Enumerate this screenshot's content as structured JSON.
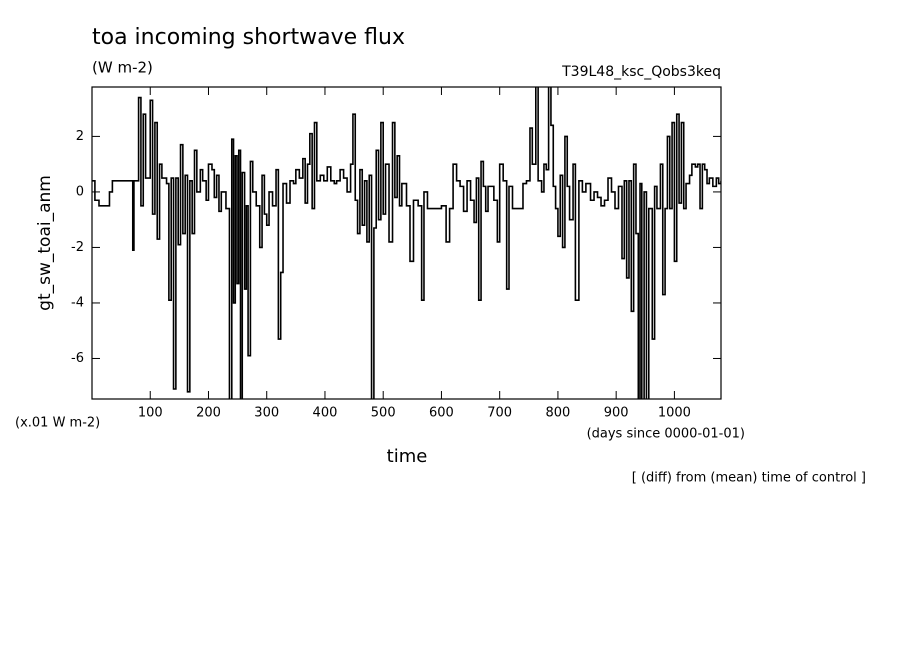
{
  "chart_data": {
    "type": "line",
    "title": "toa incoming shortwave flux",
    "subtitle": "(W m-2)",
    "run_label": "T39L48_ksc_Qobs3keq",
    "ylabel": "gt_sw_toai_anm",
    "yunit_note": "(x.01 W m-2)",
    "xlabel": "time",
    "xunit_note": "(days since 0000-01-01)",
    "footnote": "[ (diff) from (mean) time of control ]",
    "drawstyle": "steps-post",
    "color": "#000000",
    "xlim": [
      0,
      1080
    ],
    "ylim": [
      -7.46,
      3.78
    ],
    "xticks": [
      100,
      200,
      300,
      400,
      500,
      600,
      700,
      800,
      900,
      1000
    ],
    "yticks": [
      -6,
      -4,
      -2,
      0,
      2
    ],
    "x": [
      0,
      5,
      12,
      30,
      35,
      70,
      72,
      80,
      84,
      88,
      92,
      100,
      104,
      108,
      112,
      116,
      120,
      128,
      132,
      136,
      140,
      144,
      148,
      152,
      156,
      160,
      164,
      168,
      172,
      176,
      180,
      186,
      190,
      196,
      200,
      206,
      210,
      214,
      218,
      222,
      230,
      236,
      240,
      243,
      246,
      249,
      252,
      255,
      258,
      262,
      265,
      268,
      272,
      276,
      282,
      288,
      292,
      296,
      300,
      304,
      310,
      316,
      320,
      324,
      328,
      334,
      340,
      346,
      350,
      356,
      362,
      366,
      370,
      374,
      378,
      382,
      386,
      392,
      398,
      404,
      410,
      416,
      420,
      426,
      432,
      438,
      444,
      448,
      452,
      456,
      460,
      464,
      468,
      472,
      476,
      480,
      484,
      488,
      492,
      496,
      500,
      504,
      510,
      516,
      520,
      524,
      528,
      532,
      540,
      546,
      552,
      560,
      566,
      570,
      576,
      584,
      590,
      600,
      608,
      614,
      620,
      626,
      632,
      638,
      644,
      650,
      656,
      660,
      664,
      668,
      672,
      676,
      680,
      690,
      696,
      700,
      706,
      712,
      716,
      722,
      730,
      740,
      746,
      752,
      756,
      762,
      766,
      772,
      776,
      780,
      784,
      788,
      792,
      796,
      800,
      804,
      808,
      812,
      816,
      820,
      826,
      830,
      836,
      842,
      848,
      856,
      862,
      868,
      874,
      880,
      886,
      892,
      898,
      904,
      910,
      914,
      918,
      922,
      926,
      930,
      934,
      938,
      941,
      944,
      948,
      952,
      956,
      962,
      966,
      970,
      976,
      980,
      984,
      988,
      992,
      996,
      1000,
      1004,
      1008,
      1012,
      1016,
      1020,
      1026,
      1030,
      1036,
      1040,
      1044,
      1048,
      1052,
      1056,
      1060,
      1066,
      1072,
      1076,
      1080
    ],
    "values": [
      0.4,
      -0.3,
      -0.5,
      0.0,
      0.4,
      -2.1,
      0.4,
      3.4,
      -0.5,
      2.8,
      0.5,
      3.3,
      -0.8,
      2.5,
      -1.7,
      1.0,
      0.5,
      0.3,
      -3.9,
      0.5,
      -7.1,
      0.5,
      -1.9,
      1.7,
      -1.5,
      0.6,
      -7.2,
      0.4,
      -1.5,
      1.5,
      0.0,
      0.8,
      0.4,
      -0.3,
      1.0,
      0.8,
      -0.2,
      0.6,
      -0.7,
      0.0,
      -0.6,
      -7.5,
      1.9,
      -4.0,
      1.3,
      -3.3,
      1.5,
      -7.5,
      0.7,
      -3.5,
      -0.5,
      -5.9,
      1.1,
      0.0,
      -0.5,
      -2.0,
      0.6,
      -0.8,
      -1.2,
      0.0,
      -0.5,
      0.8,
      -5.3,
      -2.9,
      0.3,
      -0.4,
      0.4,
      0.3,
      0.8,
      0.5,
      1.2,
      -0.4,
      1.0,
      2.1,
      -0.6,
      2.5,
      0.4,
      0.6,
      0.4,
      0.9,
      0.4,
      0.3,
      0.4,
      0.8,
      0.5,
      0.0,
      1.0,
      2.8,
      -0.3,
      -1.5,
      0.8,
      -1.2,
      0.4,
      -1.8,
      0.6,
      -7.5,
      -1.3,
      1.5,
      -1.0,
      2.5,
      -0.8,
      1.0,
      -1.8,
      2.5,
      -0.2,
      1.3,
      -0.5,
      0.3,
      -0.5,
      -2.5,
      -0.3,
      -0.5,
      -3.9,
      0.0,
      -0.6,
      -0.6,
      -0.6,
      -0.5,
      -1.8,
      -0.6,
      1.0,
      0.4,
      0.2,
      -0.7,
      0.4,
      -0.3,
      -1.1,
      0.5,
      -3.9,
      1.1,
      0.2,
      -0.7,
      0.2,
      -0.3,
      -1.8,
      1.0,
      0.4,
      -3.5,
      0.2,
      -0.6,
      -0.6,
      0.3,
      0.4,
      2.3,
      1.0,
      3.8,
      0.4,
      0.0,
      1.0,
      0.8,
      3.8,
      2.4,
      0.2,
      -0.6,
      -1.6,
      0.6,
      -2.0,
      2.0,
      0.2,
      -1.0,
      1.0,
      -3.9,
      0.4,
      0.0,
      0.3,
      -0.3,
      0.0,
      -0.2,
      -0.5,
      -0.3,
      0.5,
      0.0,
      -0.6,
      0.2,
      -2.4,
      0.4,
      -3.1,
      0.4,
      -4.3,
      1.0,
      -1.5,
      -7.5,
      0.3,
      -7.5,
      0.0,
      -7.5,
      -0.6,
      -5.3,
      0.2,
      -0.6,
      1.0,
      -3.7,
      -0.6,
      2.0,
      -0.6,
      2.5,
      -2.5,
      2.8,
      -0.4,
      2.5,
      -0.6,
      0.3,
      0.6,
      1.0,
      0.9,
      1.0,
      -0.6,
      1.0,
      0.8,
      0.3,
      0.5,
      0.2,
      0.5,
      0.3,
      0.4
    ]
  }
}
